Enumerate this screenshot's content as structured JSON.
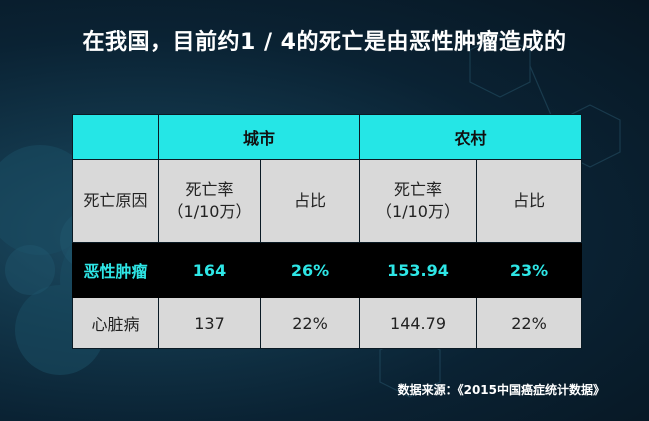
{
  "title": "在我国，目前约1 / 4的死亡是由恶性肿瘤造成的",
  "table": {
    "groups": [
      "城市",
      "农村"
    ],
    "col_rate_line1": "死亡率",
    "col_rate_line2": "（1/10万）",
    "col_share": "占比",
    "row_header": "死亡原因",
    "rows": [
      {
        "cause": "恶性肿瘤",
        "city_rate": "164",
        "city_share": "26%",
        "rural_rate": "153.94",
        "rural_share": "23%"
      },
      {
        "cause": "心脏病",
        "city_rate": "137",
        "city_share": "22%",
        "rural_rate": "144.79",
        "rural_share": "22%"
      }
    ]
  },
  "source": "数据来源：《2015中国癌症统计数据》",
  "colors": {
    "accent": "#25e6e6",
    "highlight_text": "#2ee6e6",
    "cell_bg": "#d9d9d9",
    "dark_bg": "#0a2233"
  }
}
